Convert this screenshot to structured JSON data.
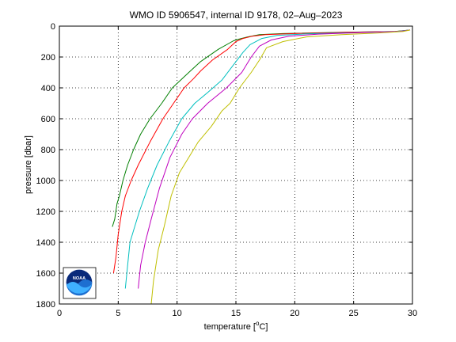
{
  "chart_data": {
    "type": "line",
    "title": "WMO ID 5906547, internal ID 9178, 02–Aug–2023",
    "xlabel_pre": "temperature [",
    "xlabel_sup": "o",
    "xlabel_post": "C]",
    "ylabel": "pressure [dbar]",
    "xlim": [
      0,
      30
    ],
    "ylim": [
      0,
      1800
    ],
    "y_reversed": true,
    "grid": true,
    "x_ticks": [
      "0",
      "5",
      "10",
      "15",
      "20",
      "25",
      "30"
    ],
    "y_ticks": [
      "0",
      "200",
      "400",
      "600",
      "800",
      "1000",
      "1200",
      "1400",
      "1600",
      "1800"
    ],
    "logo_text": "NOAA",
    "series": [
      {
        "color": "#007f00",
        "x": [
          29.8,
          28.5,
          24.0,
          19.0,
          17.0,
          16.0,
          15.2,
          14.8,
          13.5,
          12.0,
          11.0,
          10.3,
          9.6,
          8.7,
          7.7,
          6.9,
          6.3,
          5.8,
          5.4,
          5.1,
          4.9,
          4.7,
          4.5
        ],
        "y": [
          25,
          35,
          40,
          48,
          55,
          70,
          85,
          95,
          150,
          230,
          300,
          350,
          400,
          500,
          600,
          700,
          800,
          900,
          1000,
          1100,
          1150,
          1250,
          1300
        ]
      },
      {
        "color": "#ff0000",
        "x": [
          29.8,
          28.6,
          24.5,
          20.0,
          17.5,
          16.4,
          15.6,
          15.0,
          14.3,
          13.0,
          12.0,
          11.4,
          10.6,
          9.7,
          8.8,
          7.7,
          6.7,
          6.1,
          5.6,
          5.3,
          5.0,
          4.8,
          4.6
        ],
        "y": [
          25,
          35,
          40,
          48,
          55,
          65,
          80,
          100,
          150,
          220,
          290,
          340,
          400,
          500,
          600,
          750,
          900,
          1000,
          1100,
          1200,
          1350,
          1500,
          1600
        ]
      },
      {
        "color": "#00bfbf",
        "x": [
          29.8,
          28.7,
          25.0,
          21.0,
          18.5,
          17.2,
          16.2,
          15.6,
          14.8,
          13.8,
          12.6,
          11.5,
          10.4,
          9.3,
          8.3,
          7.5,
          6.8,
          6.4,
          6.0,
          5.8,
          5.6
        ],
        "y": [
          25,
          35,
          42,
          50,
          60,
          80,
          120,
          170,
          250,
          350,
          430,
          500,
          600,
          750,
          900,
          1050,
          1200,
          1300,
          1400,
          1550,
          1700
        ]
      },
      {
        "color": "#bf00bf",
        "x": [
          29.8,
          28.9,
          25.5,
          22.0,
          19.5,
          18.0,
          17.0,
          16.3,
          15.5,
          14.2,
          12.6,
          11.3,
          10.4,
          9.4,
          8.5,
          7.8,
          7.3,
          6.9,
          6.7
        ],
        "y": [
          25,
          35,
          42,
          52,
          65,
          90,
          130,
          200,
          300,
          400,
          500,
          600,
          700,
          850,
          1050,
          1250,
          1400,
          1550,
          1700
        ]
      },
      {
        "color": "#bfbf00",
        "x": [
          29.8,
          29.2,
          27.0,
          24.0,
          21.0,
          19.0,
          17.6,
          17.0,
          16.3,
          15.3,
          14.5,
          13.8,
          12.9,
          11.8,
          11.0,
          10.2,
          9.5,
          8.9,
          8.4,
          8.0,
          7.8
        ],
        "y": [
          25,
          35,
          45,
          55,
          70,
          100,
          140,
          220,
          300,
          400,
          500,
          550,
          650,
          750,
          850,
          950,
          1100,
          1300,
          1450,
          1650,
          1800
        ]
      }
    ]
  }
}
